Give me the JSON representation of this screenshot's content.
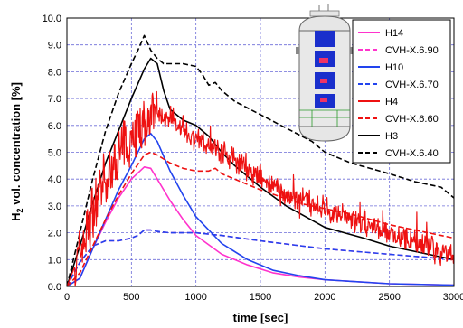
{
  "chart_data": {
    "type": "line",
    "title": "",
    "xlabel": "time [sec]",
    "ylabel_main": "H",
    "ylabel_sub": "2",
    "ylabel_rest": " vol. concentration [%]",
    "xlim": [
      0,
      3000
    ],
    "ylim": [
      0,
      10
    ],
    "xticks": [
      0,
      500,
      1000,
      1500,
      2000,
      2500,
      3000
    ],
    "yticks": [
      "0.0",
      "1.0",
      "2.0",
      "3.0",
      "4.0",
      "5.0",
      "6.0",
      "7.0",
      "8.0",
      "9.0",
      "10.0"
    ],
    "grid": true,
    "legend_position": "top-right",
    "series": [
      {
        "name": "H14",
        "color": "#ff33cc",
        "dash": "solid",
        "noisy": false,
        "x": [
          0,
          100,
          200,
          300,
          400,
          500,
          600,
          650,
          700,
          800,
          900,
          1000,
          1200,
          1400,
          1600,
          1800,
          2000,
          2500,
          3000
        ],
        "y": [
          0,
          0.3,
          1.4,
          2.4,
          3.3,
          4.0,
          4.45,
          4.4,
          4.0,
          3.2,
          2.5,
          1.9,
          1.2,
          0.8,
          0.5,
          0.35,
          0.25,
          0.1,
          0.05
        ]
      },
      {
        "name": "CVH-X.6.90",
        "color": "#ff33cc",
        "dash": "dash",
        "noisy": false,
        "x": [
          0,
          100,
          200,
          300,
          400,
          500,
          550,
          600,
          650,
          700,
          800,
          900,
          1000,
          1200,
          1500,
          2000,
          2500,
          3000
        ],
        "y": [
          0,
          0.9,
          1.5,
          1.7,
          1.7,
          1.8,
          1.9,
          2.1,
          2.1,
          2.05,
          2.0,
          2.0,
          2.0,
          1.9,
          1.7,
          1.4,
          1.2,
          1.0
        ]
      },
      {
        "name": "H10",
        "color": "#2244ee",
        "dash": "solid",
        "noisy": false,
        "x": [
          0,
          100,
          200,
          300,
          400,
          500,
          600,
          650,
          700,
          800,
          900,
          1000,
          1200,
          1400,
          1600,
          1800,
          2000,
          2500,
          3000
        ],
        "y": [
          0,
          0.3,
          1.4,
          2.5,
          3.6,
          4.5,
          5.5,
          5.7,
          5.4,
          4.3,
          3.4,
          2.6,
          1.6,
          1.0,
          0.6,
          0.4,
          0.25,
          0.1,
          0.05
        ]
      },
      {
        "name": "CVH-X.6.70",
        "color": "#2244ee",
        "dash": "dash",
        "noisy": false,
        "x": [
          0,
          100,
          200,
          300,
          400,
          500,
          550,
          600,
          650,
          700,
          800,
          900,
          1000,
          1200,
          1500,
          2000,
          2500,
          3000
        ],
        "y": [
          0,
          0.9,
          1.5,
          1.7,
          1.7,
          1.8,
          1.9,
          2.1,
          2.1,
          2.05,
          2.0,
          2.0,
          2.0,
          1.9,
          1.7,
          1.4,
          1.2,
          1.0
        ]
      },
      {
        "name": "H4",
        "color": "#ee1111",
        "dash": "solid",
        "noisy": true,
        "x": [
          0,
          100,
          200,
          300,
          400,
          500,
          600,
          700,
          800,
          900,
          1000,
          1100,
          1200,
          1300,
          1500,
          1700,
          2000,
          2200,
          2500,
          2800,
          3000
        ],
        "y": [
          0,
          1.2,
          2.8,
          3.8,
          4.8,
          5.6,
          6.2,
          6.4,
          6.1,
          5.8,
          5.5,
          5.2,
          5.0,
          4.7,
          4.1,
          3.4,
          2.9,
          2.5,
          2.0,
          1.5,
          1.1
        ]
      },
      {
        "name": "CVH-X.6.60",
        "color": "#ee1111",
        "dash": "dash",
        "noisy": false,
        "x": [
          0,
          100,
          200,
          300,
          400,
          500,
          600,
          650,
          700,
          800,
          900,
          1000,
          1100,
          1150,
          1200,
          1300,
          1500,
          1800,
          2000,
          2200,
          2500,
          2800,
          3000
        ],
        "y": [
          0,
          0.5,
          1.5,
          2.5,
          3.4,
          4.2,
          4.9,
          5.0,
          4.9,
          4.6,
          4.4,
          4.3,
          4.3,
          4.4,
          4.2,
          4.0,
          3.6,
          3.1,
          2.9,
          2.7,
          2.3,
          2.0,
          1.8
        ]
      },
      {
        "name": "H3",
        "color": "#000000",
        "dash": "solid",
        "noisy": false,
        "x": [
          0,
          100,
          200,
          300,
          400,
          500,
          600,
          650,
          700,
          750,
          800,
          900,
          1000,
          1100,
          1200,
          1300,
          1500,
          1700,
          2000,
          2300,
          2500,
          2800,
          3000
        ],
        "y": [
          0,
          1.5,
          3.1,
          4.6,
          5.8,
          7.0,
          8.1,
          8.5,
          8.3,
          7.3,
          6.6,
          6.2,
          6.0,
          5.6,
          5.0,
          4.5,
          3.7,
          3.0,
          2.2,
          1.8,
          1.5,
          1.2,
          1.0
        ]
      },
      {
        "name": "CVH-X.6.40",
        "color": "#000000",
        "dash": "dash",
        "noisy": false,
        "x": [
          0,
          100,
          200,
          300,
          400,
          500,
          550,
          600,
          650,
          700,
          750,
          800,
          900,
          1000,
          1050,
          1100,
          1150,
          1200,
          1300,
          1500,
          1700,
          1900,
          2000,
          2200,
          2500,
          2700,
          2800,
          2900,
          3000
        ],
        "y": [
          0,
          2.0,
          4.0,
          5.8,
          7.2,
          8.3,
          8.8,
          9.35,
          8.8,
          8.5,
          8.3,
          8.3,
          8.3,
          8.2,
          7.9,
          7.5,
          7.6,
          7.3,
          6.9,
          6.4,
          5.9,
          5.4,
          5.0,
          4.6,
          4.2,
          3.9,
          3.8,
          3.7,
          3.3
        ]
      }
    ]
  }
}
